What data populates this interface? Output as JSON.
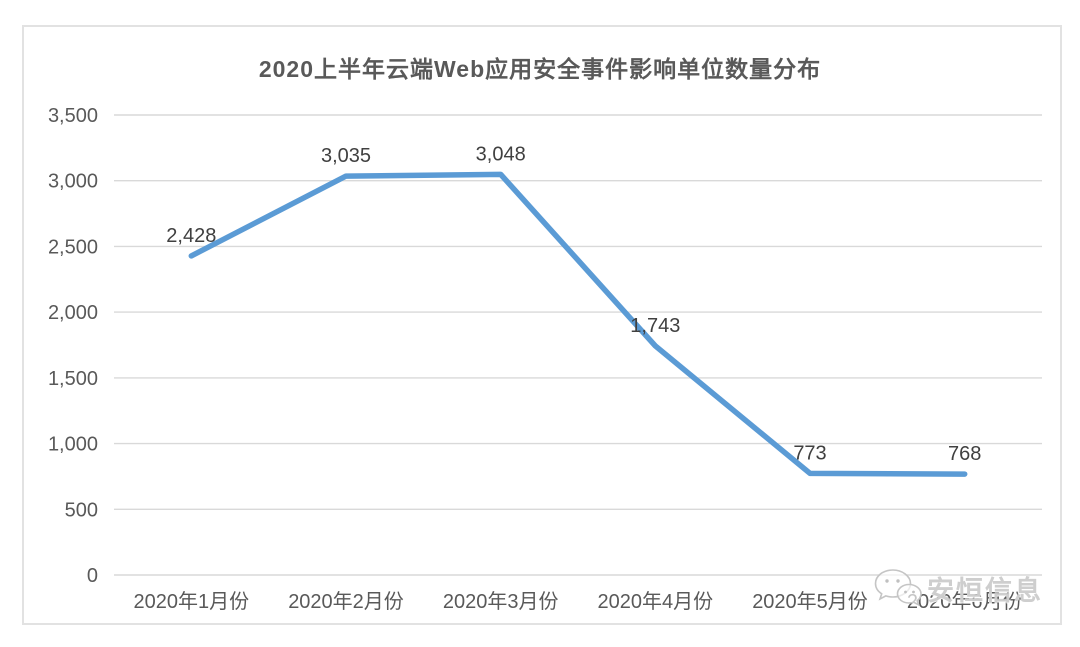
{
  "page": {
    "background": "#ffffff"
  },
  "chart_data": {
    "type": "line",
    "title": "2020上半年云端Web应用安全事件影响单位数量分布",
    "categories": [
      "2020年1月份",
      "2020年2月份",
      "2020年3月份",
      "2020年4月份",
      "2020年5月份",
      "2020年6月份"
    ],
    "values": [
      2428,
      3035,
      3048,
      1743,
      773,
      768
    ],
    "value_labels": [
      "2,428",
      "3,035",
      "3,048",
      "1,743",
      "773",
      "768"
    ],
    "xlabel": "",
    "ylabel": "",
    "ylim": [
      0,
      3500
    ],
    "ytick_step": 500,
    "ytick_labels": [
      "0",
      "500",
      "1,000",
      "1,500",
      "2,000",
      "2,500",
      "3,000",
      "3,500"
    ],
    "grid": true,
    "legend_position": "none",
    "colors": {
      "line": "#5B9BD5",
      "grid": "#d9d9d9",
      "axis_text": "#595959",
      "data_label_text": "#404040",
      "title_text": "#595959",
      "frame_border": "#e2e2e2",
      "watermark_text": "#c5c5c5"
    }
  },
  "watermark": {
    "text": "安恒信息",
    "icon": "wechat-logo-icon"
  }
}
